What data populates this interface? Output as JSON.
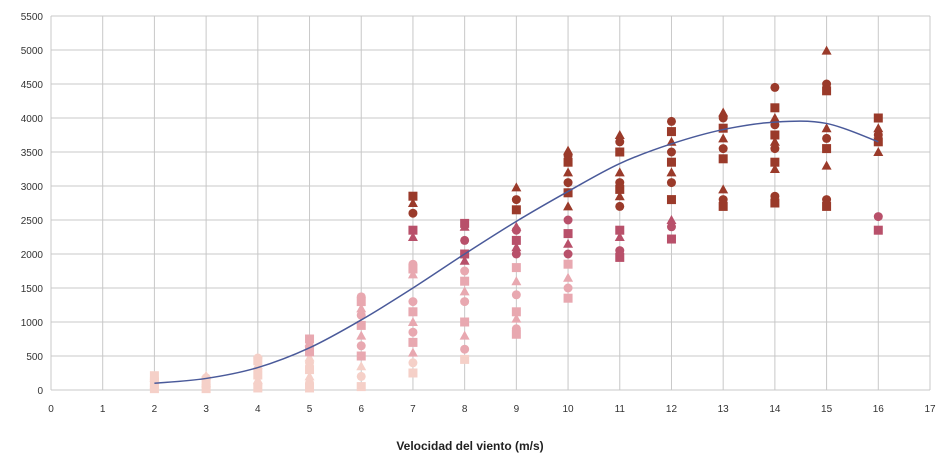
{
  "chart_data": {
    "type": "scatter",
    "title": "",
    "xlabel": "Velocidad del viento (m/s)",
    "ylabel": "",
    "xlim": [
      0,
      17
    ],
    "ylim": [
      0,
      5500
    ],
    "x_ticks": [
      "0",
      "1",
      "2",
      "3",
      "4",
      "5",
      "6",
      "7",
      "8",
      "9",
      "10",
      "11",
      "12",
      "13",
      "14",
      "15",
      "16",
      "17"
    ],
    "y_ticks": [
      "0",
      "500",
      "1000",
      "1500",
      "2000",
      "2500",
      "3000",
      "3500",
      "4000",
      "4500",
      "5000",
      "5500"
    ],
    "grid": true,
    "legend": "none",
    "colors": {
      "curve": "#4a5a9a",
      "grid": "#c8c8c8",
      "points_high": "#9a3a2a",
      "points_mid": "#b8506a",
      "points_low": "#e8a8b0",
      "points_lowest": "#f5d0c8"
    },
    "curve": {
      "x": [
        2,
        3,
        4,
        5,
        6,
        7,
        8,
        9,
        10,
        11,
        12,
        13,
        14,
        15,
        16
      ],
      "y": [
        100,
        170,
        330,
        620,
        1030,
        1500,
        2000,
        2480,
        2920,
        3330,
        3620,
        3830,
        3940,
        3920,
        3650
      ]
    },
    "scatter": [
      {
        "x": 2,
        "y": [
          20,
          50,
          80,
          120,
          150,
          180,
          210
        ]
      },
      {
        "x": 3,
        "y": [
          20,
          60,
          100,
          140,
          180,
          210
        ]
      },
      {
        "x": 4,
        "y": [
          30,
          80,
          150,
          220,
          300,
          370,
          430,
          470
        ]
      },
      {
        "x": 5,
        "y": [
          30,
          100,
          200,
          300,
          400,
          480,
          560,
          630,
          700,
          750
        ]
      },
      {
        "x": 6,
        "y": [
          50,
          200,
          350,
          500,
          650,
          800,
          950,
          1100,
          1200,
          1300,
          1370
        ]
      },
      {
        "x": 7,
        "y": [
          250,
          400,
          550,
          700,
          850,
          1000,
          1150,
          1300,
          1700,
          1780,
          1850,
          2250,
          2350,
          2600,
          2750,
          2850
        ]
      },
      {
        "x": 8,
        "y": [
          450,
          600,
          800,
          1000,
          1300,
          1450,
          1600,
          1750,
          1900,
          2000,
          2200,
          2400,
          2450
        ]
      },
      {
        "x": 9,
        "y": [
          820,
          900,
          1050,
          1150,
          1400,
          1600,
          1800,
          2000,
          2100,
          2200,
          2350,
          2400,
          2650,
          2800,
          2980
        ]
      },
      {
        "x": 10,
        "y": [
          1350,
          1500,
          1650,
          1850,
          2000,
          2150,
          2300,
          2500,
          2700,
          2900,
          3050,
          3200,
          3350,
          3450,
          3520
        ]
      },
      {
        "x": 11,
        "y": [
          1950,
          2050,
          2250,
          2350,
          2700,
          2850,
          2950,
          3050,
          3200,
          3500,
          3650,
          3750
        ]
      },
      {
        "x": 12,
        "y": [
          2220,
          2400,
          2500,
          2800,
          3050,
          3200,
          3350,
          3500,
          3650,
          3800,
          3950
        ]
      },
      {
        "x": 13,
        "y": [
          2700,
          2800,
          2950,
          3400,
          3550,
          3700,
          3850,
          4000,
          4080
        ]
      },
      {
        "x": 14,
        "y": [
          2750,
          2850,
          3250,
          3350,
          3550,
          3650,
          3750,
          3900,
          4000,
          4150,
          4450
        ]
      },
      {
        "x": 15,
        "y": [
          2700,
          2800,
          3300,
          3550,
          3700,
          3850,
          4400,
          4500,
          4990
        ]
      },
      {
        "x": 16,
        "y": [
          2350,
          2550,
          3500,
          3650,
          3750,
          3850,
          4000
        ]
      }
    ]
  }
}
